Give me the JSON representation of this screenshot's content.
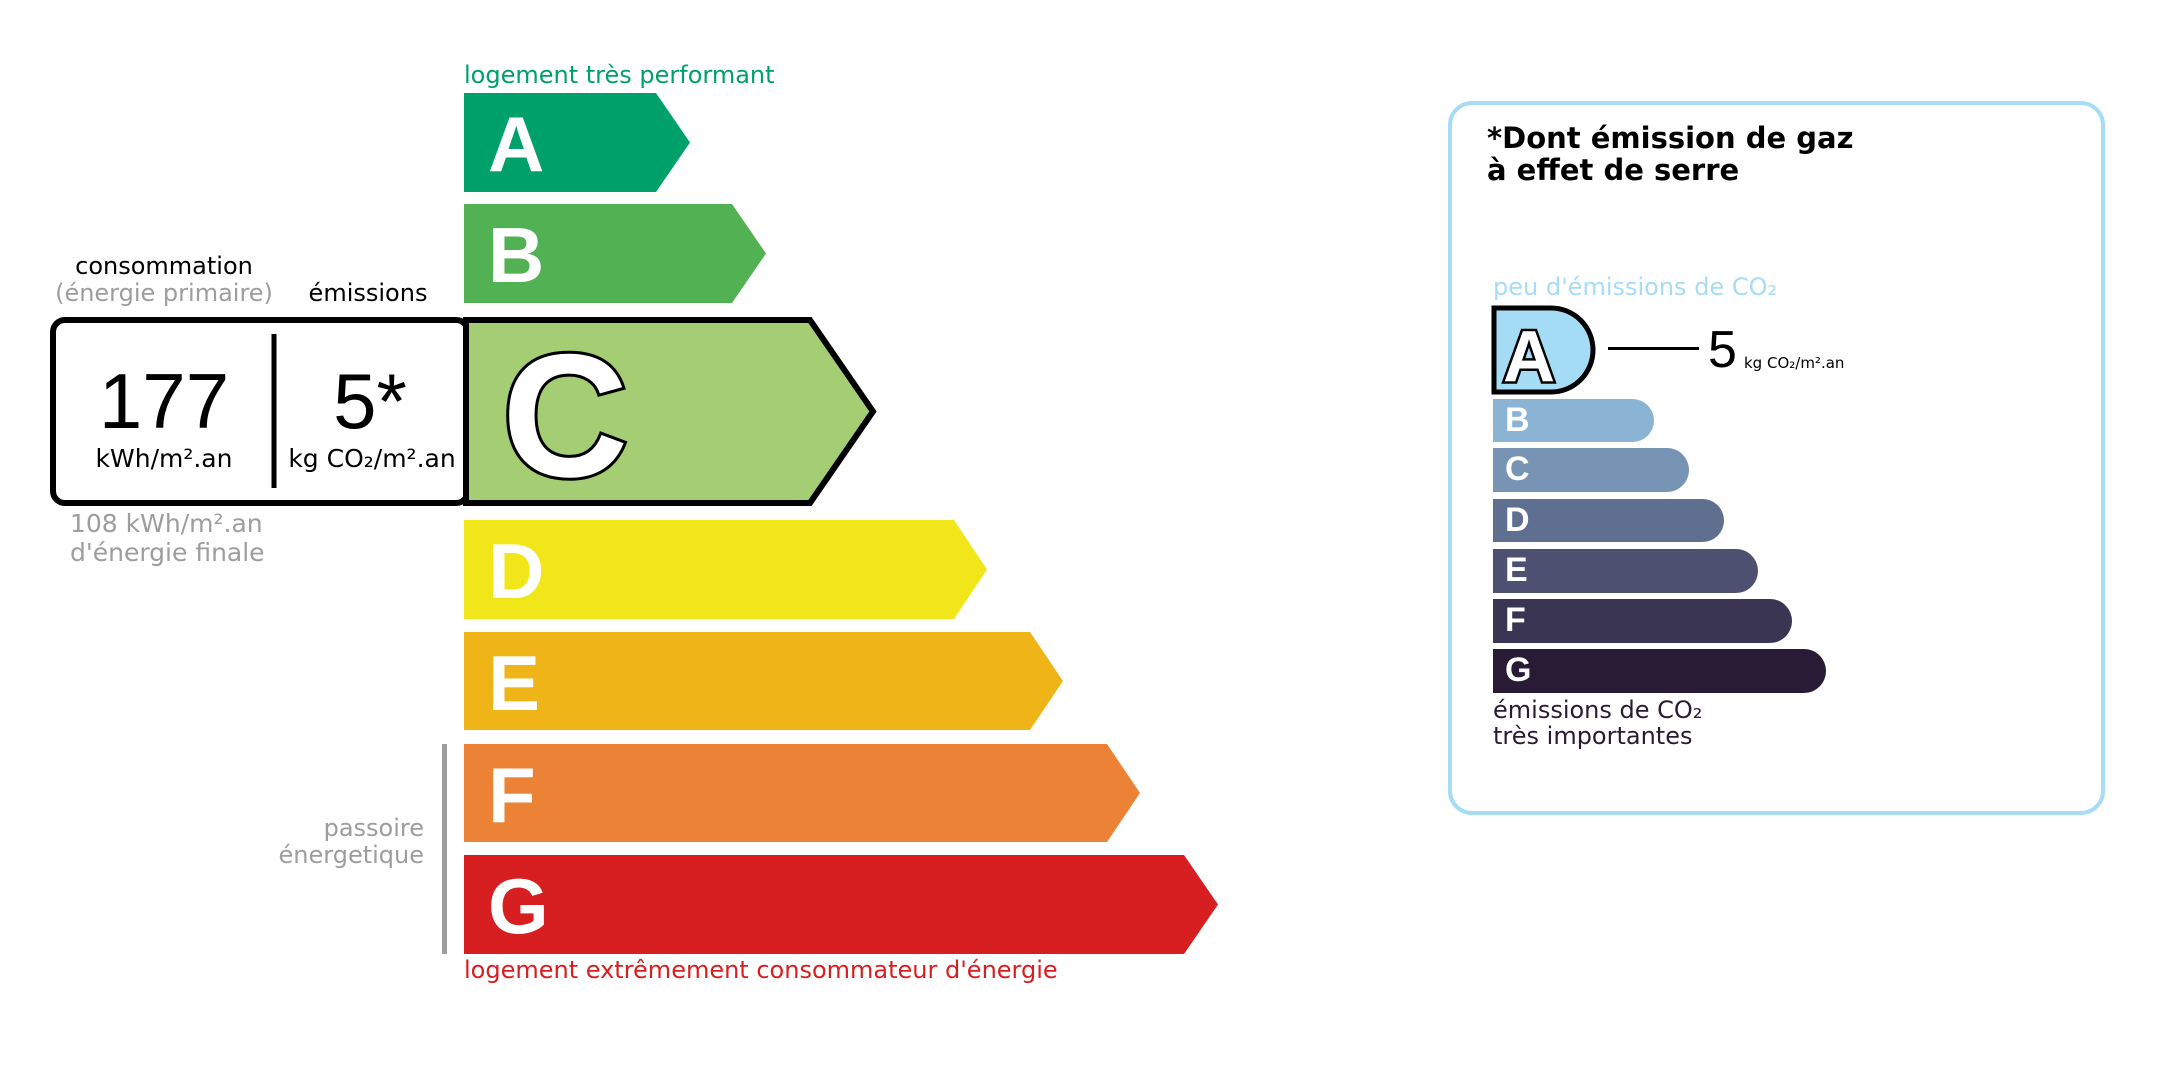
{
  "energy": {
    "top_label": "logement très performant",
    "bottom_label": "logement extrêmement consommateur d'énergie",
    "passoire_label": [
      "passoire",
      "énergetique"
    ],
    "classes": [
      {
        "letter": "A",
        "color": "#00a06b"
      },
      {
        "letter": "B",
        "color": "#52b153"
      },
      {
        "letter": "C",
        "color": "#a5cd73"
      },
      {
        "letter": "D",
        "color": "#f1e61a"
      },
      {
        "letter": "E",
        "color": "#efb418"
      },
      {
        "letter": "F",
        "color": "#eb8235"
      },
      {
        "letter": "G",
        "color": "#d71e20"
      }
    ],
    "current_class": "C",
    "consumption_header": "consommation",
    "consumption_subheader": "(énergie primaire)",
    "emissions_header": "émissions",
    "consumption_value": "177",
    "consumption_unit": "kWh/m².an",
    "emissions_value": "5*",
    "emissions_unit": "kg CO₂/m².an",
    "final_energy": "108 kWh/m².an",
    "final_energy_label": "d'énergie finale",
    "top_label_color": "#00a06b",
    "bottom_label_color": "#d71e20"
  },
  "ges": {
    "title_line1": "*Dont émission de gaz",
    "title_line2": "à effet de serre",
    "top_label": "peu d'émissions de CO₂",
    "bottom_label_line1": "émissions de CO₂",
    "bottom_label_line2": "très importantes",
    "current_class": "A",
    "value": "5",
    "unit": "kg CO₂/m².an",
    "border_color": "#a6dcf6",
    "classes": [
      {
        "letter": "A",
        "color": "#a4dcf6"
      },
      {
        "letter": "B",
        "color": "#8bb4d4"
      },
      {
        "letter": "C",
        "color": "#7794b4"
      },
      {
        "letter": "D",
        "color": "#5f6f90"
      },
      {
        "letter": "E",
        "color": "#4d5070"
      },
      {
        "letter": "F",
        "color": "#393552"
      },
      {
        "letter": "G",
        "color": "#291b35"
      }
    ]
  }
}
